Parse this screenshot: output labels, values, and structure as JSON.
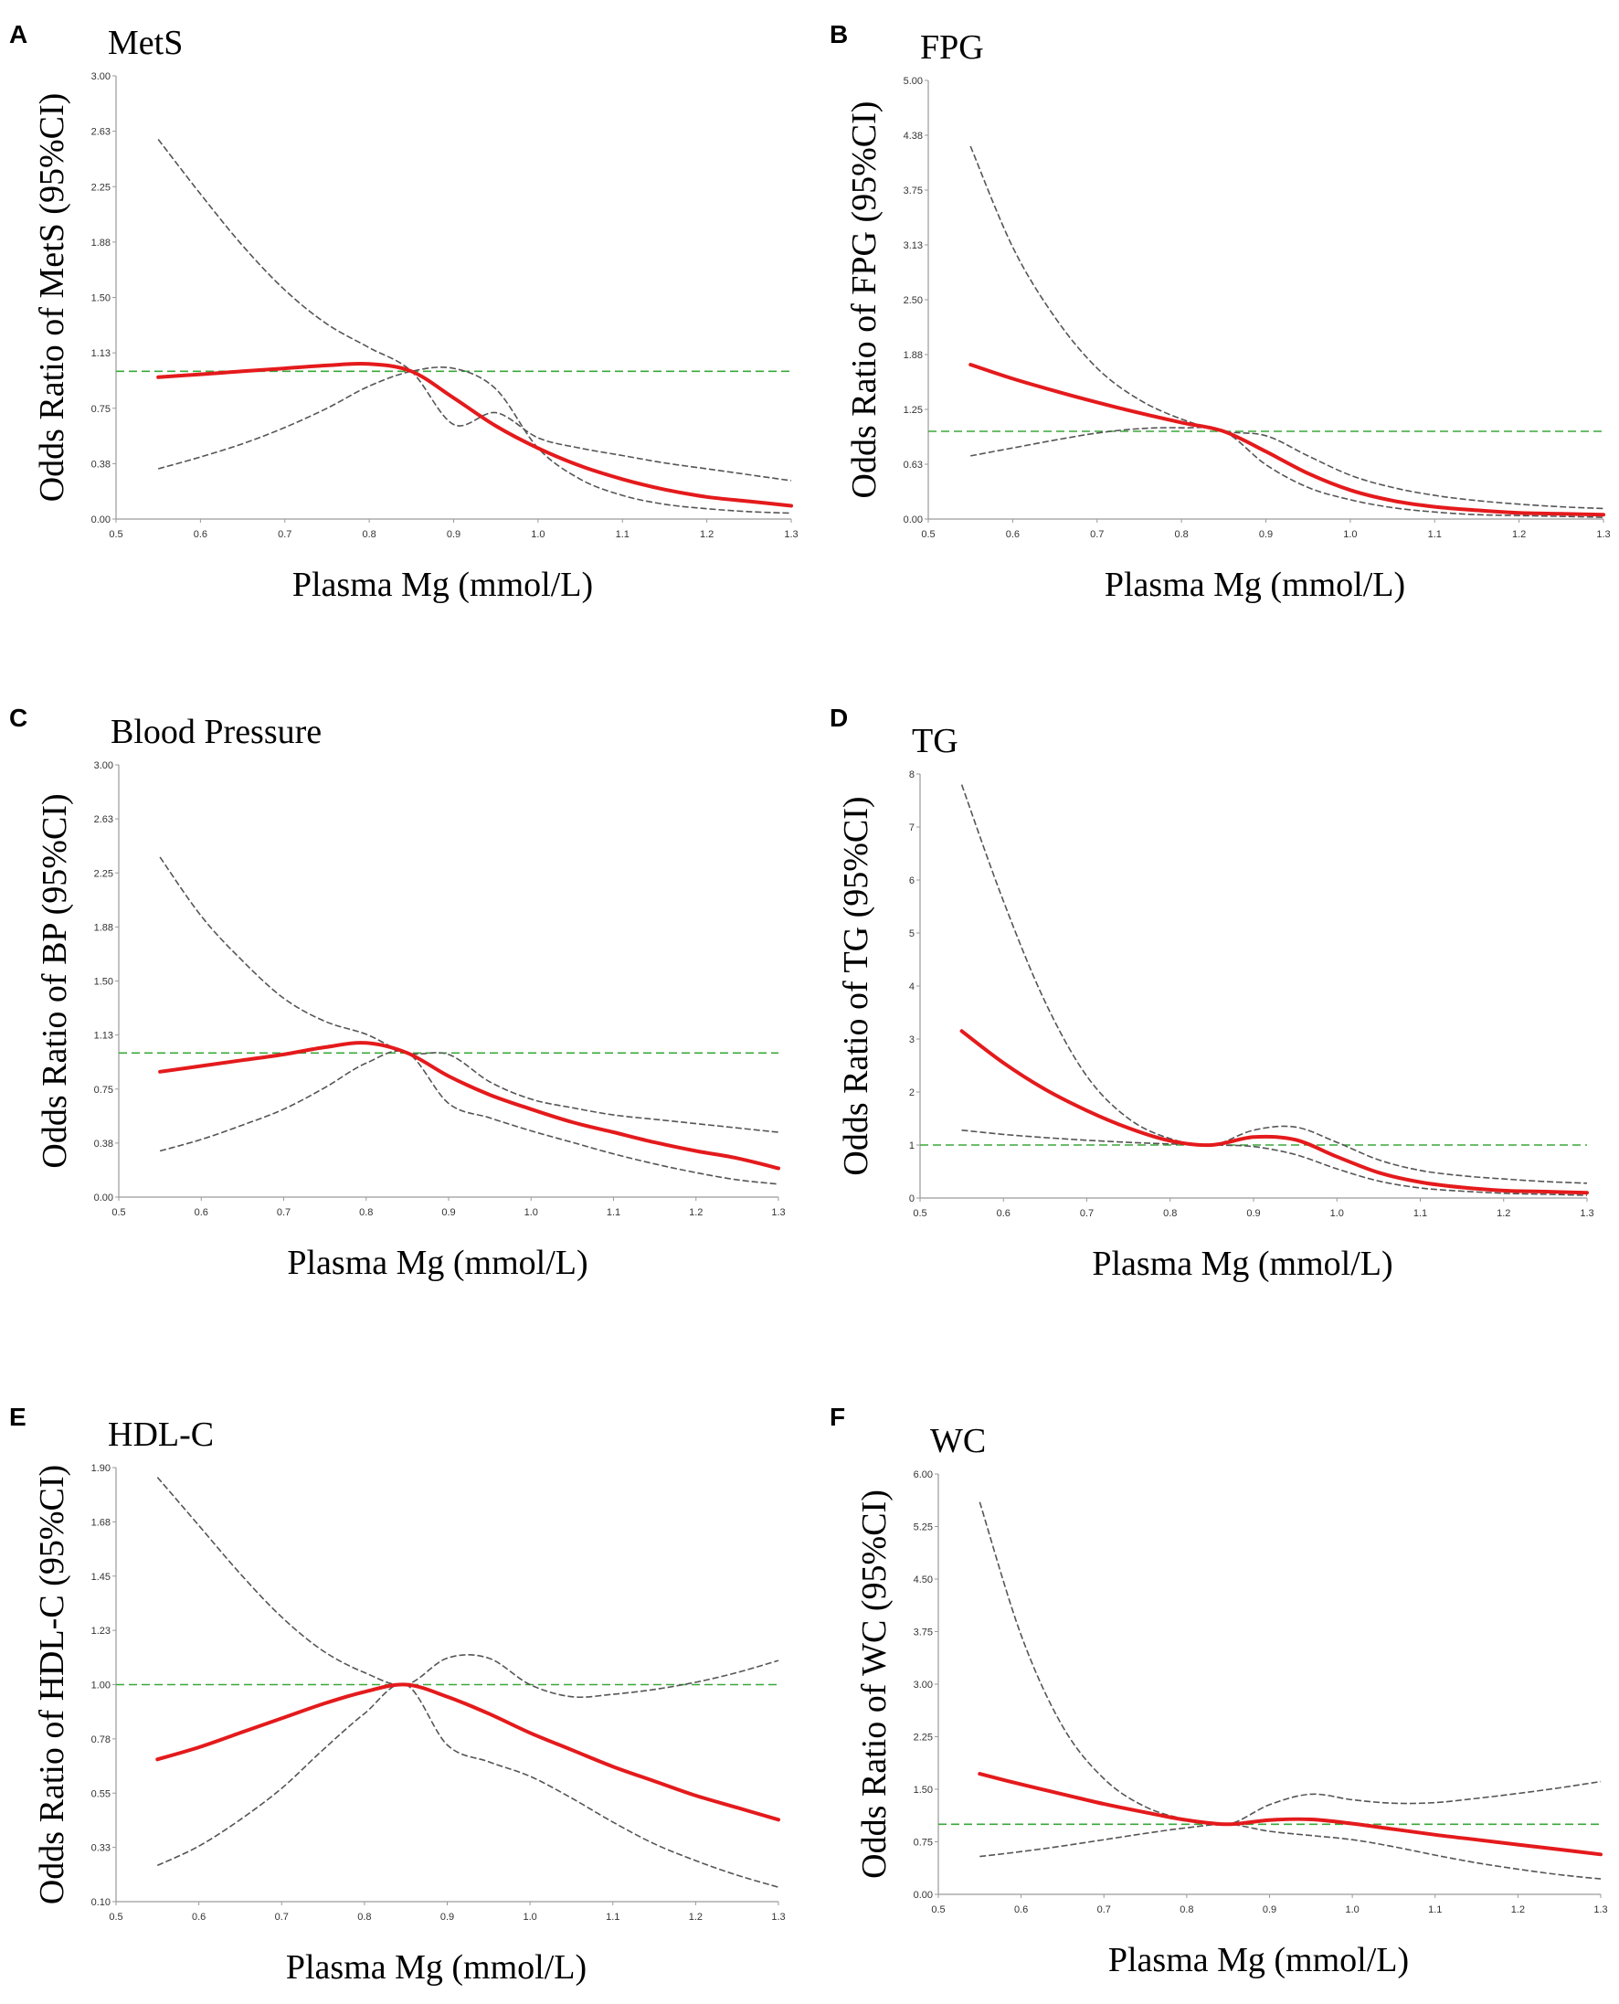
{
  "figure": {
    "description_free": true
  },
  "chart_data": [
    {
      "panel": "A",
      "type": "line",
      "title": "MetS",
      "xlabel": "Plasma Mg (mmol/L)",
      "ylabel": "Odds Ratio of MetS (95%CI)",
      "xlim": [
        0.5,
        1.3
      ],
      "ylim": [
        0,
        3.0
      ],
      "x_ticks": [
        "0.5",
        "0.6",
        "0.7",
        "0.8",
        "0.9",
        "1.0",
        "1.1",
        "1.2",
        "1.3"
      ],
      "y_ticks": [
        "0.00",
        "0.38",
        "0.75",
        "1.13",
        "1.50",
        "1.88",
        "2.25",
        "2.63",
        "3.00"
      ],
      "reference": 1.0,
      "series": [
        {
          "name": "OR",
          "x": [
            0.55,
            0.6,
            0.65,
            0.7,
            0.75,
            0.8,
            0.85,
            0.9,
            0.95,
            1.0,
            1.05,
            1.1,
            1.15,
            1.2,
            1.25,
            1.3
          ],
          "y": [
            0.96,
            0.98,
            1.0,
            1.02,
            1.04,
            1.05,
            1.0,
            0.82,
            0.63,
            0.48,
            0.36,
            0.27,
            0.2,
            0.15,
            0.12,
            0.09
          ]
        },
        {
          "name": "Lower 95% CI",
          "x": [
            0.55,
            0.6,
            0.65,
            0.7,
            0.75,
            0.8,
            0.85,
            0.9,
            0.95,
            1.0,
            1.05,
            1.1,
            1.15,
            1.2,
            1.25,
            1.3
          ],
          "y": [
            0.34,
            0.42,
            0.51,
            0.62,
            0.75,
            0.9,
            1.0,
            1.02,
            0.88,
            0.48,
            0.27,
            0.16,
            0.1,
            0.07,
            0.05,
            0.04
          ]
        },
        {
          "name": "Upper 95% CI",
          "x": [
            0.55,
            0.6,
            0.65,
            0.7,
            0.75,
            0.8,
            0.85,
            0.9,
            0.95,
            1.0,
            1.05,
            1.1,
            1.15,
            1.2,
            1.25,
            1.3
          ],
          "y": [
            2.57,
            2.2,
            1.85,
            1.55,
            1.32,
            1.16,
            1.0,
            0.64,
            0.72,
            0.55,
            0.48,
            0.43,
            0.38,
            0.34,
            0.3,
            0.26
          ]
        }
      ]
    },
    {
      "panel": "B",
      "type": "line",
      "title": "FPG",
      "xlabel": "Plasma Mg (mmol/L)",
      "ylabel": "Odds Ratio of FPG (95%CI)",
      "xlim": [
        0.5,
        1.3
      ],
      "ylim": [
        0,
        5.0
      ],
      "x_ticks": [
        "0.5",
        "0.6",
        "0.7",
        "0.8",
        "0.9",
        "1.0",
        "1.1",
        "1.2",
        "1.3"
      ],
      "y_ticks": [
        "0.00",
        "0.63",
        "1.25",
        "1.88",
        "2.50",
        "3.13",
        "3.75",
        "4.38",
        "5.00"
      ],
      "reference": 1.0,
      "series": [
        {
          "name": "OR",
          "x": [
            0.55,
            0.6,
            0.65,
            0.7,
            0.75,
            0.8,
            0.85,
            0.9,
            0.95,
            1.0,
            1.05,
            1.1,
            1.15,
            1.2,
            1.25,
            1.3
          ],
          "y": [
            1.76,
            1.6,
            1.46,
            1.33,
            1.21,
            1.1,
            1.0,
            0.77,
            0.52,
            0.33,
            0.21,
            0.14,
            0.1,
            0.07,
            0.06,
            0.05
          ]
        },
        {
          "name": "Lower 95% CI",
          "x": [
            0.55,
            0.6,
            0.65,
            0.7,
            0.75,
            0.8,
            0.85,
            0.9,
            0.95,
            1.0,
            1.05,
            1.1,
            1.15,
            1.2,
            1.25,
            1.3
          ],
          "y": [
            0.72,
            0.81,
            0.9,
            0.98,
            1.03,
            1.04,
            1.0,
            0.62,
            0.36,
            0.22,
            0.13,
            0.08,
            0.05,
            0.04,
            0.03,
            0.02
          ]
        },
        {
          "name": "Upper 95% CI",
          "x": [
            0.55,
            0.6,
            0.65,
            0.7,
            0.75,
            0.8,
            0.85,
            0.9,
            0.95,
            1.0,
            1.05,
            1.1,
            1.15,
            1.2,
            1.25,
            1.3
          ],
          "y": [
            4.25,
            3.1,
            2.3,
            1.72,
            1.36,
            1.14,
            1.0,
            0.95,
            0.72,
            0.5,
            0.36,
            0.27,
            0.21,
            0.17,
            0.14,
            0.12
          ]
        }
      ]
    },
    {
      "panel": "C",
      "type": "line",
      "title": "Blood Pressure",
      "xlabel": "Plasma Mg (mmol/L)",
      "ylabel": "Odds Ratio of BP (95%CI)",
      "xlim": [
        0.5,
        1.3
      ],
      "ylim": [
        0,
        3.0
      ],
      "x_ticks": [
        "0.5",
        "0.6",
        "0.7",
        "0.8",
        "0.9",
        "1.0",
        "1.1",
        "1.2",
        "1.3"
      ],
      "y_ticks": [
        "0.00",
        "0.38",
        "0.75",
        "1.13",
        "1.50",
        "1.88",
        "2.25",
        "2.63",
        "3.00"
      ],
      "reference": 1.0,
      "series": [
        {
          "name": "OR",
          "x": [
            0.55,
            0.6,
            0.65,
            0.7,
            0.75,
            0.8,
            0.85,
            0.9,
            0.95,
            1.0,
            1.05,
            1.1,
            1.15,
            1.2,
            1.25,
            1.3
          ],
          "y": [
            0.87,
            0.91,
            0.95,
            0.99,
            1.04,
            1.07,
            1.0,
            0.84,
            0.71,
            0.61,
            0.52,
            0.45,
            0.38,
            0.32,
            0.27,
            0.2
          ]
        },
        {
          "name": "Lower 95% CI",
          "x": [
            0.55,
            0.6,
            0.65,
            0.7,
            0.75,
            0.8,
            0.85,
            0.9,
            0.95,
            1.0,
            1.05,
            1.1,
            1.15,
            1.2,
            1.25,
            1.3
          ],
          "y": [
            0.32,
            0.4,
            0.5,
            0.61,
            0.76,
            0.93,
            1.0,
            0.65,
            0.55,
            0.46,
            0.38,
            0.3,
            0.23,
            0.17,
            0.12,
            0.09
          ]
        },
        {
          "name": "Upper 95% CI",
          "x": [
            0.55,
            0.6,
            0.65,
            0.7,
            0.75,
            0.8,
            0.85,
            0.9,
            0.95,
            1.0,
            1.05,
            1.1,
            1.15,
            1.2,
            1.25,
            1.3
          ],
          "y": [
            2.36,
            1.95,
            1.64,
            1.38,
            1.22,
            1.13,
            1.0,
            0.99,
            0.8,
            0.68,
            0.62,
            0.57,
            0.54,
            0.51,
            0.48,
            0.45
          ]
        }
      ]
    },
    {
      "panel": "D",
      "type": "line",
      "title": "TG",
      "xlabel": "Plasma Mg (mmol/L)",
      "ylabel": "Odds Ratio of TG (95%CI)",
      "xlim": [
        0.5,
        1.3
      ],
      "ylim": [
        0,
        8
      ],
      "x_ticks": [
        "0.5",
        "0.6",
        "0.7",
        "0.8",
        "0.9",
        "1.0",
        "1.1",
        "1.2",
        "1.3"
      ],
      "y_ticks": [
        "0",
        "1",
        "2",
        "3",
        "4",
        "5",
        "6",
        "7",
        "8"
      ],
      "reference": 1.0,
      "series": [
        {
          "name": "OR",
          "x": [
            0.55,
            0.6,
            0.65,
            0.7,
            0.75,
            0.8,
            0.85,
            0.9,
            0.95,
            1.0,
            1.05,
            1.1,
            1.15,
            1.2,
            1.25,
            1.3
          ],
          "y": [
            3.15,
            2.55,
            2.05,
            1.65,
            1.32,
            1.08,
            1.0,
            1.15,
            1.1,
            0.78,
            0.48,
            0.3,
            0.2,
            0.14,
            0.12,
            0.1
          ]
        },
        {
          "name": "Lower 95% CI",
          "x": [
            0.55,
            0.6,
            0.65,
            0.7,
            0.75,
            0.8,
            0.85,
            0.9,
            0.95,
            1.0,
            1.05,
            1.1,
            1.15,
            1.2,
            1.25,
            1.3
          ],
          "y": [
            1.28,
            1.2,
            1.14,
            1.09,
            1.05,
            1.02,
            1.0,
            0.97,
            0.82,
            0.55,
            0.32,
            0.19,
            0.13,
            0.09,
            0.07,
            0.05
          ]
        },
        {
          "name": "Upper 95% CI",
          "x": [
            0.55,
            0.6,
            0.65,
            0.7,
            0.75,
            0.8,
            0.85,
            0.9,
            0.95,
            1.0,
            1.05,
            1.1,
            1.15,
            1.2,
            1.25,
            1.3
          ],
          "y": [
            7.8,
            5.6,
            3.7,
            2.3,
            1.5,
            1.12,
            1.0,
            1.28,
            1.34,
            1.05,
            0.72,
            0.52,
            0.42,
            0.36,
            0.31,
            0.28
          ]
        }
      ]
    },
    {
      "panel": "E",
      "type": "line",
      "title": "HDL-C",
      "xlabel": "Plasma Mg (mmol/L)",
      "ylabel": "Odds Ratio of HDL-C (95%CI)",
      "xlim": [
        0.5,
        1.3
      ],
      "ylim": [
        0.1,
        1.9
      ],
      "x_ticks": [
        "0.5",
        "0.6",
        "0.7",
        "0.8",
        "0.9",
        "1.0",
        "1.1",
        "1.2",
        "1.3"
      ],
      "y_ticks": [
        "0.10",
        "0.33",
        "0.55",
        "0.78",
        "1.00",
        "1.23",
        "1.45",
        "1.68",
        "1.90"
      ],
      "reference": 1.0,
      "series": [
        {
          "name": "OR",
          "x": [
            0.55,
            0.6,
            0.65,
            0.7,
            0.75,
            0.8,
            0.85,
            0.9,
            0.95,
            1.0,
            1.05,
            1.1,
            1.15,
            1.2,
            1.25,
            1.3
          ],
          "y": [
            0.69,
            0.74,
            0.8,
            0.86,
            0.92,
            0.97,
            1.0,
            0.95,
            0.88,
            0.8,
            0.73,
            0.66,
            0.6,
            0.54,
            0.49,
            0.44
          ]
        },
        {
          "name": "Lower 95% CI",
          "x": [
            0.55,
            0.6,
            0.65,
            0.7,
            0.75,
            0.8,
            0.85,
            0.9,
            0.95,
            1.0,
            1.05,
            1.1,
            1.15,
            1.2,
            1.25,
            1.3
          ],
          "y": [
            0.25,
            0.33,
            0.44,
            0.57,
            0.73,
            0.88,
            1.0,
            0.75,
            0.68,
            0.62,
            0.53,
            0.43,
            0.34,
            0.27,
            0.21,
            0.16
          ]
        },
        {
          "name": "Upper 95% CI",
          "x": [
            0.55,
            0.6,
            0.65,
            0.7,
            0.75,
            0.8,
            0.85,
            0.9,
            0.95,
            1.0,
            1.05,
            1.1,
            1.15,
            1.2,
            1.25,
            1.3
          ],
          "y": [
            1.86,
            1.66,
            1.46,
            1.28,
            1.14,
            1.05,
            1.0,
            1.11,
            1.11,
            1.0,
            0.95,
            0.96,
            0.98,
            1.01,
            1.05,
            1.1
          ]
        }
      ]
    },
    {
      "panel": "F",
      "type": "line",
      "title": "WC",
      "xlabel": "Plasma Mg (mmol/L)",
      "ylabel": "Odds Ratio of WC (95%CI)",
      "xlim": [
        0.5,
        1.3
      ],
      "ylim": [
        0,
        6.0
      ],
      "x_ticks": [
        "0.5",
        "0.6",
        "0.7",
        "0.8",
        "0.9",
        "1.0",
        "1.1",
        "1.2",
        "1.3"
      ],
      "y_ticks": [
        "0.00",
        "0.75",
        "1.50",
        "2.25",
        "3.00",
        "3.75",
        "4.50",
        "5.25",
        "6.00"
      ],
      "reference": 1.0,
      "series": [
        {
          "name": "OR",
          "x": [
            0.55,
            0.6,
            0.65,
            0.7,
            0.75,
            0.8,
            0.85,
            0.9,
            0.95,
            1.0,
            1.05,
            1.1,
            1.15,
            1.2,
            1.25,
            1.3
          ],
          "y": [
            1.72,
            1.57,
            1.43,
            1.29,
            1.17,
            1.06,
            1.0,
            1.06,
            1.07,
            1.01,
            0.93,
            0.85,
            0.78,
            0.71,
            0.64,
            0.57
          ]
        },
        {
          "name": "Lower 95% CI",
          "x": [
            0.55,
            0.6,
            0.65,
            0.7,
            0.75,
            0.8,
            0.85,
            0.9,
            0.95,
            1.0,
            1.05,
            1.1,
            1.15,
            1.2,
            1.25,
            1.3
          ],
          "y": [
            0.54,
            0.61,
            0.69,
            0.78,
            0.87,
            0.95,
            1.0,
            0.9,
            0.84,
            0.78,
            0.68,
            0.56,
            0.45,
            0.36,
            0.28,
            0.22
          ]
        },
        {
          "name": "Upper 95% CI",
          "x": [
            0.55,
            0.6,
            0.65,
            0.7,
            0.75,
            0.8,
            0.85,
            0.9,
            0.95,
            1.0,
            1.05,
            1.1,
            1.15,
            1.2,
            1.25,
            1.3
          ],
          "y": [
            5.6,
            3.7,
            2.4,
            1.65,
            1.25,
            1.07,
            1.0,
            1.28,
            1.43,
            1.35,
            1.3,
            1.31,
            1.37,
            1.44,
            1.52,
            1.61
          ]
        }
      ]
    }
  ]
}
